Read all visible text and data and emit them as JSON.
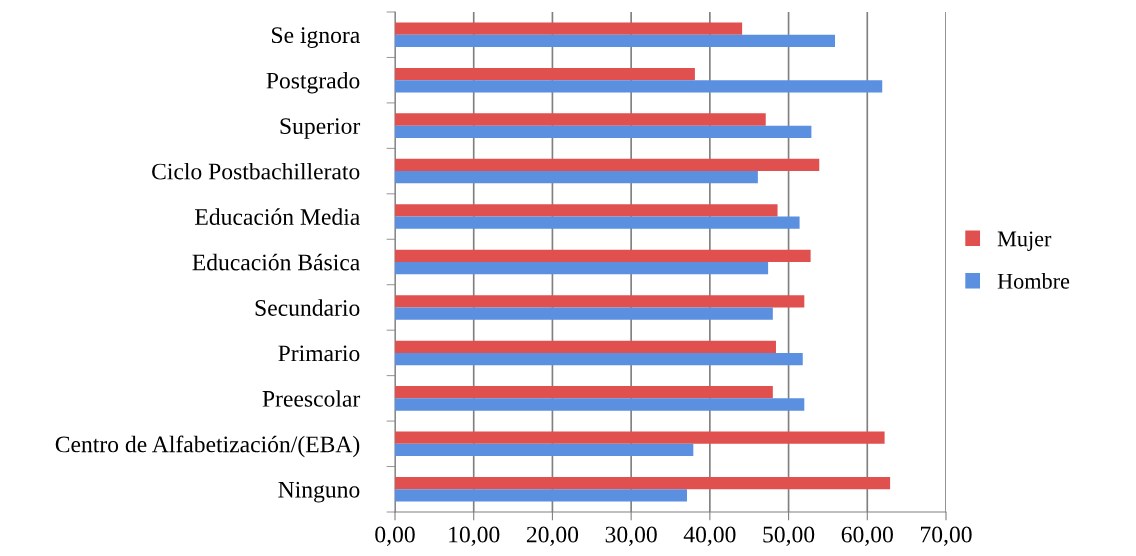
{
  "chart_data": {
    "type": "bar",
    "orientation": "horizontal",
    "categories": [
      "Se ignora",
      "Postgrado",
      "Superior",
      "Ciclo Postbachillerato",
      "Educación Media",
      "Educación Básica",
      "Secundario",
      "Primario",
      "Preescolar",
      "Centro de Alfabetización/(EBA)",
      "Ninguno"
    ],
    "series": [
      {
        "name": "Mujer",
        "color": "#e0504f",
        "values": [
          44.1,
          38.1,
          47.1,
          53.9,
          48.6,
          52.8,
          52.0,
          48.4,
          48.0,
          62.2,
          62.9
        ]
      },
      {
        "name": "Hombre",
        "color": "#5b8fe0",
        "values": [
          55.9,
          61.9,
          52.9,
          46.1,
          51.4,
          47.4,
          48.0,
          51.8,
          52.0,
          37.9,
          37.1
        ]
      }
    ],
    "xlim": [
      0,
      70
    ],
    "xticks": [
      {
        "value": 0,
        "label": "0,00"
      },
      {
        "value": 10,
        "label": "10,00"
      },
      {
        "value": 20,
        "label": "20,00"
      },
      {
        "value": 30,
        "label": "30,00"
      },
      {
        "value": 40,
        "label": "40,00"
      },
      {
        "value": 50,
        "label": "50,00"
      },
      {
        "value": 60,
        "label": "60,00"
      },
      {
        "value": 70,
        "label": "70,00"
      }
    ],
    "grid": "x",
    "legend": "right"
  }
}
